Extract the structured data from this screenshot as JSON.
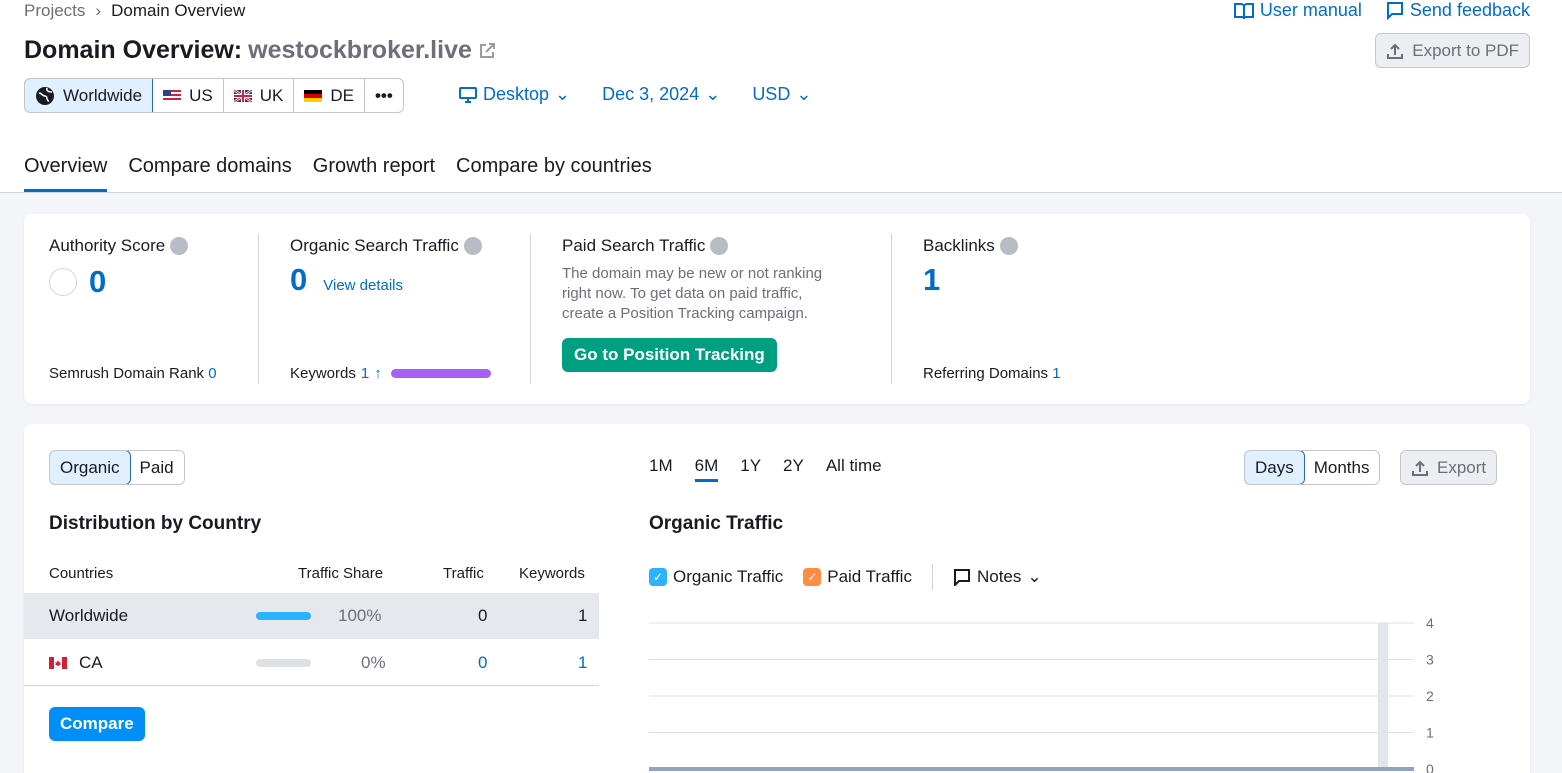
{
  "breadcrumb": {
    "root": "Projects",
    "current": "Domain Overview"
  },
  "top_links": {
    "manual": "User manual",
    "feedback": "Send feedback"
  },
  "title": {
    "prefix": "Domain Overview:",
    "domain": "westockbroker.live"
  },
  "export_pdf": "Export to PDF",
  "regions": [
    {
      "label": "Worldwide",
      "icon": "globe-icon"
    },
    {
      "label": "US",
      "icon": "flag-us-icon"
    },
    {
      "label": "UK",
      "icon": "flag-uk-icon"
    },
    {
      "label": "DE",
      "icon": "flag-de-icon"
    },
    {
      "label": "•••",
      "icon": "more-icon"
    }
  ],
  "selectors": {
    "device": "Desktop",
    "date": "Dec 3, 2024",
    "currency": "USD"
  },
  "tabs": [
    "Overview",
    "Compare domains",
    "Growth report",
    "Compare by countries"
  ],
  "metrics": {
    "authority": {
      "title": "Authority Score",
      "value": "0",
      "foot_label": "Semrush Domain Rank",
      "foot_value": "0"
    },
    "organic": {
      "title": "Organic Search Traffic",
      "value": "0",
      "link": "View details",
      "foot_label": "Keywords",
      "foot_value": "1"
    },
    "paid": {
      "title": "Paid Search Traffic",
      "desc1": "The domain may be new or not ranking",
      "desc2": "right now. To get data on paid traffic,",
      "desc3": "create a Position Tracking campaign.",
      "button": "Go to Position Tracking"
    },
    "backlinks": {
      "title": "Backlinks",
      "value": "1",
      "foot_label": "Referring Domains",
      "foot_value": "1"
    }
  },
  "lower": {
    "traffic_type": [
      "Organic",
      "Paid"
    ],
    "periods": [
      "1M",
      "6M",
      "1Y",
      "2Y",
      "All time"
    ],
    "granularity": [
      "Days",
      "Months"
    ],
    "export": "Export",
    "dist_title": "Distribution by Country",
    "columns": [
      "Countries",
      "Traffic Share",
      "Traffic",
      "Keywords"
    ],
    "rows": [
      {
        "country": "Worldwide",
        "share": "100%",
        "share_value": 1.0,
        "traffic": "0",
        "keywords": "1"
      },
      {
        "country": "CA",
        "share": "0%",
        "share_value": 0.0,
        "traffic": "0",
        "keywords": "1"
      }
    ],
    "compare": "Compare",
    "chart_title": "Organic Traffic",
    "legend": {
      "organic": "Organic Traffic",
      "paid": "Paid Traffic",
      "notes": "Notes"
    }
  },
  "chart_data": {
    "type": "line",
    "title": "Organic Traffic",
    "y_ticks": [
      "4",
      "3",
      "2",
      "1",
      "0"
    ],
    "ylim": [
      0,
      4
    ],
    "series": [
      {
        "name": "Organic Traffic",
        "values": [
          0,
          0,
          0,
          0,
          0,
          0,
          0
        ]
      }
    ],
    "grid": true
  },
  "colors": {
    "accent": "#006dca",
    "green": "#009f81",
    "organic": "#2bb3ff",
    "paid": "#ff8c43",
    "keyword_bar": "#a560f5"
  }
}
